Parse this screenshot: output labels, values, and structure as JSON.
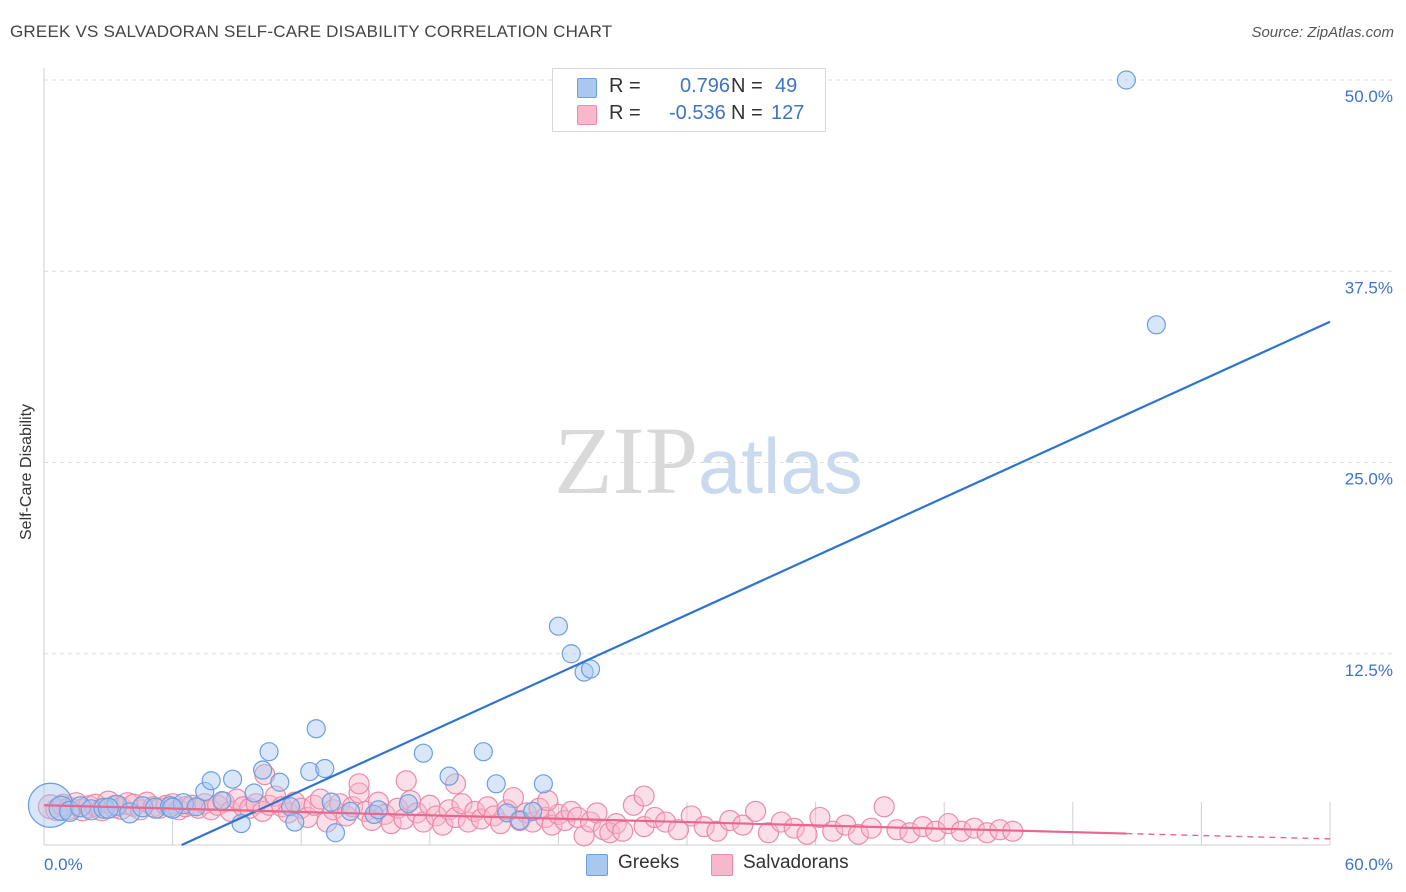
{
  "title": "GREEK VS SALVADORAN SELF-CARE DISABILITY CORRELATION CHART",
  "source": "Source: ZipAtlas.com",
  "watermark": {
    "zip": "ZIP",
    "atlas": "atlas"
  },
  "colors": {
    "greek_fill": "#a9c8f0",
    "greek_stroke": "#6b9fe0",
    "greek_line": "#2f73d1",
    "salv_fill": "#f6b8cb",
    "salv_stroke": "#ec8aa8",
    "salv_line": "#e8668f",
    "tick_text": "#3d74c4",
    "grid": "#dcdcdc"
  },
  "legend": {
    "greeks": {
      "r_label": "R =",
      "r_value": "0.796",
      "n_label": "N =",
      "n_value": "49"
    },
    "salvadorans": {
      "r_label": "R =",
      "r_value": "-0.536",
      "n_label": "N =",
      "n_value": "127"
    }
  },
  "chart_data": {
    "type": "scatter",
    "title": "GREEK VS SALVADORAN SELF-CARE DISABILITY CORRELATION CHART",
    "xlabel": "",
    "ylabel": "Self-Care Disability",
    "xlim": [
      0,
      60
    ],
    "ylim": [
      0,
      52
    ],
    "x_tick_labels": [
      "0.0%",
      "60.0%"
    ],
    "y_ticks": [
      12.5,
      25.0,
      37.5,
      50.0
    ],
    "y_tick_labels": [
      "12.5%",
      "25.0%",
      "37.5%",
      "50.0%"
    ],
    "grid": true,
    "series": [
      {
        "name": "Greeks",
        "r": 0.796,
        "n": 49,
        "trend": {
          "x": [
            0,
            60
          ],
          "y": [
            -4.1,
            34.2
          ],
          "dash_from": null
        },
        "points": [
          [
            0.3,
            2.6,
            22
          ],
          [
            0.8,
            2.4,
            12
          ],
          [
            1.2,
            2.2,
            10
          ],
          [
            1.7,
            2.5,
            10
          ],
          [
            2.2,
            2.3,
            10
          ],
          [
            2.8,
            2.4,
            10
          ],
          [
            3.4,
            2.6,
            10
          ],
          [
            4.0,
            2.1,
            10
          ],
          [
            4.6,
            2.5,
            10
          ],
          [
            5.2,
            2.4,
            10
          ],
          [
            5.9,
            2.5,
            10
          ],
          [
            6.5,
            2.7,
            10
          ],
          [
            7.1,
            2.5,
            9
          ],
          [
            7.5,
            3.5,
            9
          ],
          [
            7.8,
            4.2,
            9
          ],
          [
            8.3,
            2.9,
            9
          ],
          [
            8.8,
            4.3,
            9
          ],
          [
            9.2,
            1.4,
            9
          ],
          [
            9.8,
            3.4,
            9
          ],
          [
            10.2,
            4.9,
            9
          ],
          [
            10.5,
            6.1,
            9
          ],
          [
            11.0,
            4.1,
            9
          ],
          [
            11.5,
            2.5,
            9
          ],
          [
            11.7,
            1.5,
            9
          ],
          [
            12.4,
            4.8,
            9
          ],
          [
            12.7,
            7.6,
            9
          ],
          [
            13.1,
            5.0,
            9
          ],
          [
            13.4,
            2.8,
            9
          ],
          [
            13.6,
            0.8,
            9
          ],
          [
            14.3,
            2.2,
            9
          ],
          [
            15.4,
            2.0,
            9
          ],
          [
            15.6,
            2.3,
            9
          ],
          [
            17.0,
            2.7,
            9
          ],
          [
            17.7,
            6.0,
            9
          ],
          [
            18.9,
            4.5,
            9
          ],
          [
            20.5,
            6.1,
            9
          ],
          [
            21.1,
            4.0,
            9
          ],
          [
            21.6,
            2.1,
            9
          ],
          [
            22.2,
            1.6,
            9
          ],
          [
            22.8,
            2.2,
            9
          ],
          [
            23.3,
            4.0,
            9
          ],
          [
            24.0,
            14.3,
            9
          ],
          [
            24.6,
            12.5,
            9
          ],
          [
            25.2,
            11.3,
            9
          ],
          [
            25.5,
            11.5,
            9
          ],
          [
            50.5,
            50.0,
            9
          ],
          [
            51.9,
            34.0,
            9
          ],
          [
            3.0,
            2.4,
            10
          ],
          [
            6.0,
            2.4,
            10
          ]
        ]
      },
      {
        "name": "Salvadorans",
        "r": -0.536,
        "n": 127,
        "trend": {
          "x": [
            0,
            60
          ],
          "y": [
            2.6,
            0.4
          ],
          "dash_from": 50.5
        },
        "points": [
          [
            0.3,
            2.5,
            12
          ],
          [
            0.6,
            2.3,
            11
          ],
          [
            0.9,
            2.6,
            11
          ],
          [
            1.2,
            2.4,
            11
          ],
          [
            1.5,
            2.7,
            11
          ],
          [
            1.8,
            2.3,
            11
          ],
          [
            2.1,
            2.5,
            11
          ],
          [
            2.4,
            2.6,
            11
          ],
          [
            2.7,
            2.3,
            11
          ],
          [
            3.0,
            2.8,
            11
          ],
          [
            3.3,
            2.5,
            11
          ],
          [
            3.6,
            2.4,
            11
          ],
          [
            3.9,
            2.7,
            11
          ],
          [
            4.2,
            2.6,
            11
          ],
          [
            4.5,
            2.3,
            10
          ],
          [
            4.8,
            2.8,
            10
          ],
          [
            5.1,
            2.5,
            10
          ],
          [
            5.4,
            2.4,
            10
          ],
          [
            5.7,
            2.6,
            10
          ],
          [
            6.0,
            2.7,
            10
          ],
          [
            6.3,
            2.3,
            10
          ],
          [
            6.6,
            2.5,
            10
          ],
          [
            6.9,
            2.6,
            10
          ],
          [
            7.2,
            2.4,
            10
          ],
          [
            7.5,
            2.7,
            10
          ],
          [
            7.8,
            2.3,
            10
          ],
          [
            8.1,
            2.6,
            10
          ],
          [
            8.4,
            2.8,
            10
          ],
          [
            8.7,
            2.2,
            10
          ],
          [
            9.0,
            3.0,
            10
          ],
          [
            9.3,
            2.5,
            10
          ],
          [
            9.6,
            2.4,
            10
          ],
          [
            9.9,
            2.7,
            10
          ],
          [
            10.2,
            2.2,
            10
          ],
          [
            10.5,
            2.6,
            10
          ],
          [
            10.8,
            3.2,
            10
          ],
          [
            11.1,
            2.5,
            10
          ],
          [
            11.4,
            2.1,
            10
          ],
          [
            11.7,
            2.8,
            10
          ],
          [
            12.0,
            2.4,
            10
          ],
          [
            12.3,
            1.8,
            10
          ],
          [
            12.6,
            2.6,
            10
          ],
          [
            12.9,
            3.0,
            10
          ],
          [
            13.2,
            1.5,
            10
          ],
          [
            13.5,
            2.3,
            10
          ],
          [
            13.8,
            2.7,
            10
          ],
          [
            14.1,
            1.9,
            10
          ],
          [
            14.4,
            2.5,
            10
          ],
          [
            14.7,
            3.4,
            10
          ],
          [
            15.0,
            2.2,
            10
          ],
          [
            15.3,
            1.6,
            10
          ],
          [
            15.6,
            2.8,
            10
          ],
          [
            15.9,
            2.0,
            10
          ],
          [
            16.2,
            1.4,
            10
          ],
          [
            16.5,
            2.4,
            10
          ],
          [
            16.8,
            1.7,
            10
          ],
          [
            17.1,
            2.9,
            10
          ],
          [
            17.4,
            2.1,
            10
          ],
          [
            17.7,
            1.5,
            10
          ],
          [
            18.0,
            2.6,
            10
          ],
          [
            18.3,
            1.9,
            10
          ],
          [
            18.6,
            1.3,
            10
          ],
          [
            18.9,
            2.3,
            10
          ],
          [
            19.2,
            1.8,
            10
          ],
          [
            19.5,
            2.7,
            10
          ],
          [
            19.8,
            1.5,
            10
          ],
          [
            20.1,
            2.2,
            10
          ],
          [
            20.4,
            1.7,
            10
          ],
          [
            20.7,
            2.5,
            10
          ],
          [
            21.0,
            1.9,
            10
          ],
          [
            21.3,
            1.4,
            10
          ],
          [
            21.6,
            2.3,
            10
          ],
          [
            21.9,
            3.1,
            10
          ],
          [
            22.2,
            1.6,
            10
          ],
          [
            22.5,
            2.1,
            10
          ],
          [
            22.8,
            1.5,
            10
          ],
          [
            23.1,
            2.4,
            10
          ],
          [
            23.4,
            1.8,
            10
          ],
          [
            23.7,
            1.3,
            10
          ],
          [
            24.0,
            2.0,
            10
          ],
          [
            24.3,
            1.6,
            10
          ],
          [
            24.6,
            2.2,
            10
          ],
          [
            24.9,
            1.8,
            10
          ],
          [
            25.2,
            0.6,
            10
          ],
          [
            25.5,
            1.5,
            10
          ],
          [
            25.8,
            2.1,
            10
          ],
          [
            26.1,
            1.0,
            10
          ],
          [
            26.4,
            0.8,
            10
          ],
          [
            26.7,
            1.4,
            10
          ],
          [
            27.0,
            0.9,
            10
          ],
          [
            27.5,
            2.6,
            10
          ],
          [
            28.0,
            1.2,
            10
          ],
          [
            28.5,
            1.8,
            10
          ],
          [
            29.0,
            1.5,
            10
          ],
          [
            29.6,
            1.0,
            10
          ],
          [
            30.2,
            1.9,
            10
          ],
          [
            30.8,
            1.2,
            10
          ],
          [
            31.4,
            0.9,
            10
          ],
          [
            32.0,
            1.6,
            10
          ],
          [
            32.6,
            1.3,
            10
          ],
          [
            33.2,
            2.2,
            10
          ],
          [
            33.8,
            0.8,
            10
          ],
          [
            34.4,
            1.5,
            10
          ],
          [
            35.0,
            1.1,
            10
          ],
          [
            35.6,
            0.7,
            10
          ],
          [
            36.2,
            1.8,
            10
          ],
          [
            36.8,
            0.9,
            10
          ],
          [
            37.4,
            1.3,
            10
          ],
          [
            38.0,
            0.7,
            10
          ],
          [
            38.6,
            1.1,
            10
          ],
          [
            39.2,
            2.5,
            10
          ],
          [
            39.8,
            1.0,
            10
          ],
          [
            40.4,
            0.8,
            10
          ],
          [
            41.0,
            1.2,
            10
          ],
          [
            41.6,
            0.9,
            10
          ],
          [
            42.2,
            1.4,
            10
          ],
          [
            42.8,
            0.9,
            10
          ],
          [
            43.4,
            1.1,
            10
          ],
          [
            44.0,
            0.8,
            10
          ],
          [
            44.6,
            1.0,
            10
          ],
          [
            45.2,
            0.9,
            10
          ],
          [
            16.9,
            4.2,
            10
          ],
          [
            14.7,
            4.0,
            10
          ],
          [
            19.2,
            4.0,
            10
          ],
          [
            10.3,
            4.6,
            10
          ],
          [
            28.0,
            3.2,
            10
          ],
          [
            23.5,
            2.9,
            10
          ]
        ]
      }
    ]
  },
  "bottom_legend": {
    "greeks": "Greeks",
    "salvadorans": "Salvadorans"
  }
}
